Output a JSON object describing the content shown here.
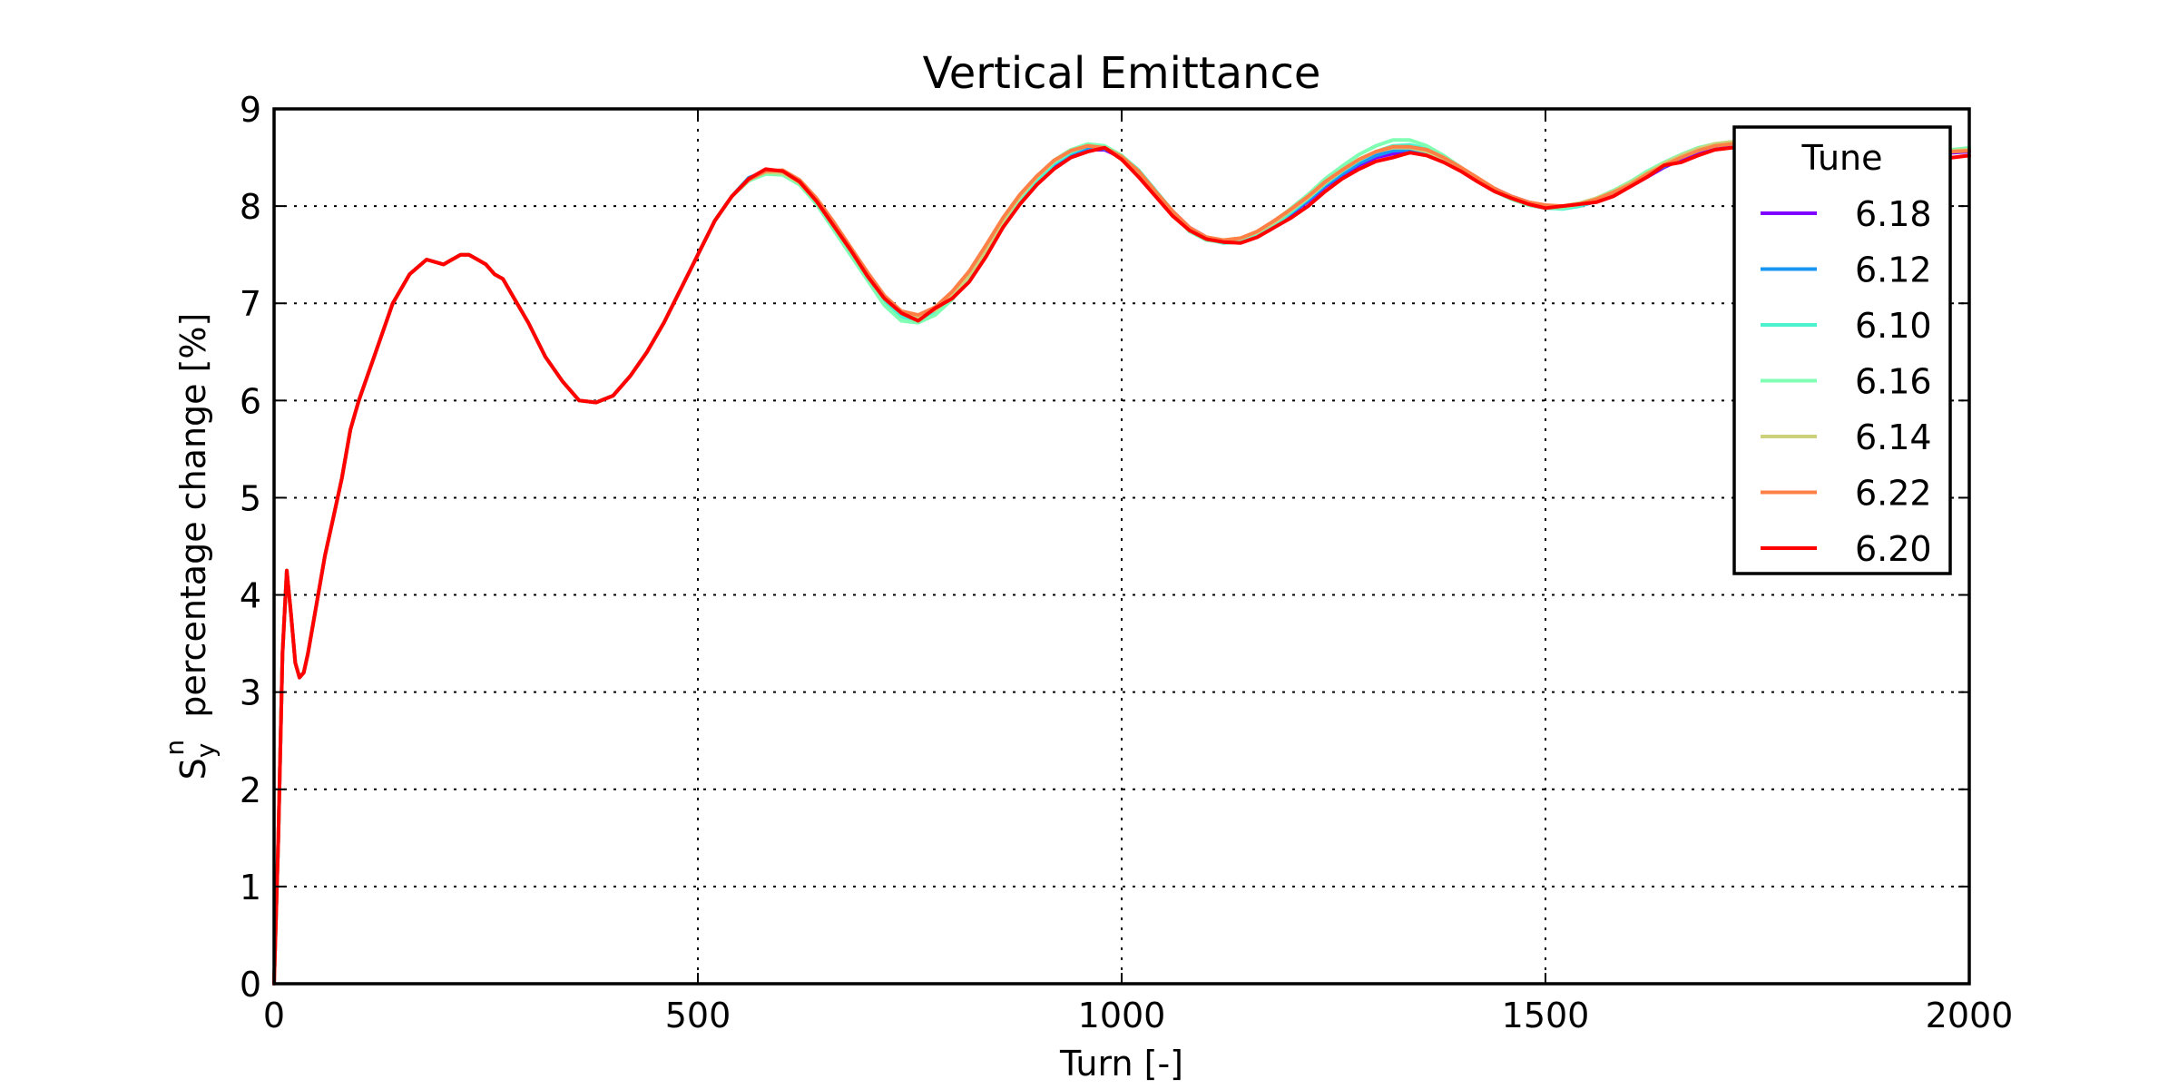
{
  "chart_data": {
    "type": "line",
    "title": "Vertical Emittance",
    "xlabel": "Turn [-]",
    "ylabel": {
      "main": "S",
      "superscript": "n",
      "subscript": "y",
      "rest": "  percentage change [%]"
    },
    "xlim": [
      0,
      2000
    ],
    "ylim": [
      0,
      9
    ],
    "xticks": [
      0,
      500,
      1000,
      1500,
      2000
    ],
    "yticks": [
      0,
      1,
      2,
      3,
      4,
      5,
      6,
      7,
      8,
      9
    ],
    "xtick_labels": [
      "0",
      "500",
      "1000",
      "1500",
      "2000"
    ],
    "ytick_labels": [
      "0",
      "1",
      "2",
      "3",
      "4",
      "5",
      "6",
      "7",
      "8",
      "9"
    ],
    "grid": true,
    "legend": {
      "title": "Tune",
      "position": "top-right"
    },
    "x": [
      0,
      5,
      10,
      15,
      20,
      25,
      30,
      35,
      40,
      50,
      60,
      70,
      80,
      90,
      100,
      120,
      140,
      160,
      180,
      200,
      210,
      220,
      230,
      240,
      250,
      260,
      270,
      280,
      300,
      320,
      340,
      360,
      380,
      400,
      420,
      440,
      460,
      480,
      500,
      520,
      540,
      560,
      580,
      600,
      620,
      640,
      660,
      680,
      700,
      720,
      740,
      760,
      780,
      800,
      820,
      840,
      860,
      880,
      900,
      920,
      940,
      960,
      980,
      1000,
      1020,
      1040,
      1060,
      1080,
      1100,
      1120,
      1140,
      1160,
      1180,
      1200,
      1220,
      1240,
      1260,
      1280,
      1300,
      1320,
      1340,
      1360,
      1380,
      1400,
      1420,
      1440,
      1460,
      1480,
      1500,
      1520,
      1540,
      1560,
      1580,
      1600,
      1620,
      1640,
      1660,
      1680,
      1700,
      1720,
      1740,
      1760,
      1780,
      1800,
      1820,
      1840,
      1860,
      1880,
      1900,
      1920,
      1940,
      1960,
      1980,
      2000
    ],
    "series": [
      {
        "name": "6.18",
        "color": "#8000ff",
        "values": [
          0,
          1.5,
          3.4,
          4.25,
          3.8,
          3.3,
          3.15,
          3.2,
          3.4,
          3.9,
          4.4,
          4.8,
          5.2,
          5.7,
          6.0,
          6.5,
          7.0,
          7.3,
          7.45,
          7.4,
          7.45,
          7.5,
          7.5,
          7.45,
          7.4,
          7.3,
          7.25,
          7.1,
          6.8,
          6.45,
          6.2,
          6.0,
          5.98,
          6.05,
          6.25,
          6.5,
          6.8,
          7.15,
          7.5,
          7.85,
          8.1,
          8.28,
          8.35,
          8.35,
          8.25,
          8.05,
          7.8,
          7.55,
          7.3,
          7.05,
          6.9,
          6.85,
          6.92,
          7.05,
          7.25,
          7.5,
          7.8,
          8.05,
          8.25,
          8.42,
          8.52,
          8.58,
          8.58,
          8.5,
          8.35,
          8.15,
          7.95,
          7.78,
          7.68,
          7.64,
          7.65,
          7.7,
          7.8,
          7.92,
          8.05,
          8.2,
          8.32,
          8.42,
          8.5,
          8.54,
          8.55,
          8.53,
          8.47,
          8.38,
          8.28,
          8.18,
          8.1,
          8.04,
          8.0,
          7.99,
          8.01,
          8.05,
          8.12,
          8.2,
          8.3,
          8.4,
          8.48,
          8.55,
          8.6,
          8.62,
          8.62,
          8.6,
          8.57,
          8.55,
          8.54,
          8.55,
          8.57,
          8.6,
          8.62,
          8.62,
          8.6,
          8.57,
          8.55,
          8.56
        ]
      },
      {
        "name": "6.12",
        "color": "#1996f3",
        "values": [
          0,
          1.5,
          3.4,
          4.25,
          3.8,
          3.3,
          3.15,
          3.2,
          3.4,
          3.9,
          4.4,
          4.8,
          5.2,
          5.7,
          6.0,
          6.5,
          7.0,
          7.3,
          7.45,
          7.4,
          7.45,
          7.5,
          7.5,
          7.45,
          7.4,
          7.3,
          7.25,
          7.1,
          6.8,
          6.45,
          6.2,
          6.0,
          5.98,
          6.05,
          6.25,
          6.5,
          6.8,
          7.15,
          7.5,
          7.85,
          8.1,
          8.29,
          8.36,
          8.34,
          8.24,
          8.06,
          7.8,
          7.54,
          7.28,
          7.04,
          6.88,
          6.84,
          6.9,
          7.06,
          7.27,
          7.52,
          7.82,
          8.07,
          8.27,
          8.43,
          8.54,
          8.6,
          8.59,
          8.51,
          8.36,
          8.15,
          7.94,
          7.77,
          7.67,
          7.63,
          7.64,
          7.7,
          7.81,
          7.93,
          8.06,
          8.21,
          8.33,
          8.44,
          8.52,
          8.57,
          8.58,
          8.55,
          8.48,
          8.38,
          8.27,
          8.17,
          8.09,
          8.03,
          7.99,
          7.98,
          8.0,
          8.05,
          8.13,
          8.22,
          8.32,
          8.41,
          8.5,
          8.57,
          8.62,
          8.64,
          8.63,
          8.61,
          8.58,
          8.56,
          8.55,
          8.56,
          8.58,
          8.61,
          8.63,
          8.63,
          8.61,
          8.58,
          8.56,
          8.57
        ]
      },
      {
        "name": "6.10",
        "color": "#4cf2ce",
        "values": [
          0,
          1.5,
          3.4,
          4.25,
          3.8,
          3.3,
          3.15,
          3.2,
          3.4,
          3.9,
          4.4,
          4.8,
          5.2,
          5.7,
          6.0,
          6.5,
          7.0,
          7.3,
          7.45,
          7.4,
          7.45,
          7.5,
          7.5,
          7.45,
          7.4,
          7.3,
          7.25,
          7.1,
          6.8,
          6.45,
          6.2,
          6.0,
          5.98,
          6.05,
          6.25,
          6.5,
          6.8,
          7.15,
          7.5,
          7.85,
          8.1,
          8.27,
          8.34,
          8.33,
          8.23,
          8.04,
          7.79,
          7.53,
          7.27,
          7.02,
          6.86,
          6.82,
          6.89,
          7.04,
          7.26,
          7.51,
          7.81,
          8.06,
          8.26,
          8.44,
          8.55,
          8.62,
          8.61,
          8.52,
          8.37,
          8.16,
          7.95,
          7.76,
          7.66,
          7.62,
          7.63,
          7.69,
          7.8,
          7.94,
          8.08,
          8.23,
          8.36,
          8.47,
          8.56,
          8.62,
          8.63,
          8.59,
          8.5,
          8.39,
          8.27,
          8.16,
          8.08,
          8.02,
          7.98,
          7.97,
          8.0,
          8.06,
          8.14,
          8.23,
          8.34,
          8.43,
          8.52,
          8.59,
          8.64,
          8.66,
          8.65,
          8.62,
          8.59,
          8.57,
          8.56,
          8.57,
          8.6,
          8.63,
          8.65,
          8.65,
          8.63,
          8.6,
          8.58,
          8.59
        ]
      },
      {
        "name": "6.16",
        "color": "#80ffb4",
        "values": [
          0,
          1.5,
          3.4,
          4.25,
          3.8,
          3.3,
          3.15,
          3.2,
          3.4,
          3.9,
          4.4,
          4.8,
          5.2,
          5.7,
          6.0,
          6.5,
          7.0,
          7.3,
          7.45,
          7.4,
          7.45,
          7.5,
          7.5,
          7.45,
          7.4,
          7.3,
          7.25,
          7.1,
          6.8,
          6.45,
          6.2,
          6.0,
          5.98,
          6.05,
          6.25,
          6.5,
          6.8,
          7.15,
          7.5,
          7.85,
          8.1,
          8.26,
          8.33,
          8.32,
          8.22,
          8.02,
          7.76,
          7.5,
          7.24,
          6.98,
          6.82,
          6.8,
          6.88,
          7.04,
          7.27,
          7.53,
          7.84,
          8.09,
          8.3,
          8.47,
          8.58,
          8.64,
          8.62,
          8.52,
          8.36,
          8.15,
          7.93,
          7.74,
          7.65,
          7.63,
          7.66,
          7.73,
          7.84,
          7.98,
          8.12,
          8.28,
          8.41,
          8.53,
          8.62,
          8.68,
          8.68,
          8.62,
          8.52,
          8.4,
          8.27,
          8.15,
          8.07,
          8.01,
          7.98,
          7.98,
          8.02,
          8.08,
          8.16,
          8.25,
          8.36,
          8.45,
          8.53,
          8.6,
          8.64,
          8.66,
          8.64,
          8.61,
          8.58,
          8.56,
          8.56,
          8.58,
          8.61,
          8.64,
          8.66,
          8.66,
          8.63,
          8.6,
          8.58,
          8.6
        ]
      },
      {
        "name": "6.14",
        "color": "#cdd17a",
        "values": [
          0,
          1.5,
          3.4,
          4.25,
          3.8,
          3.3,
          3.15,
          3.2,
          3.4,
          3.9,
          4.4,
          4.8,
          5.2,
          5.7,
          6.0,
          6.5,
          7.0,
          7.3,
          7.45,
          7.4,
          7.45,
          7.5,
          7.5,
          7.45,
          7.4,
          7.3,
          7.25,
          7.1,
          6.8,
          6.45,
          6.2,
          6.0,
          5.98,
          6.05,
          6.25,
          6.5,
          6.8,
          7.15,
          7.5,
          7.85,
          8.1,
          8.28,
          8.35,
          8.34,
          8.24,
          8.05,
          7.8,
          7.55,
          7.3,
          7.06,
          6.9,
          6.86,
          6.93,
          7.08,
          7.29,
          7.55,
          7.85,
          8.1,
          8.3,
          8.46,
          8.57,
          8.62,
          8.6,
          8.5,
          8.35,
          8.14,
          7.94,
          7.77,
          7.68,
          7.65,
          7.67,
          7.73,
          7.83,
          7.96,
          8.09,
          8.24,
          8.37,
          8.48,
          8.56,
          8.6,
          8.6,
          8.56,
          8.49,
          8.39,
          8.28,
          8.17,
          8.09,
          8.03,
          8.0,
          8.0,
          8.03,
          8.08,
          8.15,
          8.24,
          8.34,
          8.44,
          8.52,
          8.59,
          8.64,
          8.66,
          8.64,
          8.61,
          8.58,
          8.56,
          8.56,
          8.58,
          8.61,
          8.63,
          8.65,
          8.64,
          8.62,
          8.59,
          8.57,
          8.58
        ]
      },
      {
        "name": "6.22",
        "color": "#ff8047",
        "values": [
          0,
          1.5,
          3.4,
          4.25,
          3.8,
          3.3,
          3.15,
          3.2,
          3.4,
          3.9,
          4.4,
          4.8,
          5.2,
          5.7,
          6.0,
          6.5,
          7.0,
          7.3,
          7.45,
          7.4,
          7.45,
          7.5,
          7.5,
          7.45,
          7.4,
          7.3,
          7.25,
          7.1,
          6.8,
          6.45,
          6.2,
          6.0,
          5.98,
          6.05,
          6.25,
          6.5,
          6.8,
          7.15,
          7.5,
          7.85,
          8.1,
          8.27,
          8.36,
          8.37,
          8.27,
          8.08,
          7.84,
          7.58,
          7.32,
          7.08,
          6.92,
          6.88,
          6.96,
          7.12,
          7.33,
          7.6,
          7.88,
          8.12,
          8.31,
          8.47,
          8.57,
          8.62,
          8.6,
          8.51,
          8.36,
          8.15,
          7.95,
          7.78,
          7.68,
          7.65,
          7.67,
          7.74,
          7.85,
          7.97,
          8.1,
          8.25,
          8.37,
          8.48,
          8.56,
          8.61,
          8.61,
          8.58,
          8.5,
          8.4,
          8.29,
          8.18,
          8.1,
          8.04,
          8.01,
          8.0,
          8.02,
          8.07,
          8.14,
          8.22,
          8.33,
          8.42,
          8.5,
          8.57,
          8.62,
          8.64,
          8.63,
          8.6,
          8.58,
          8.56,
          8.56,
          8.58,
          8.6,
          8.62,
          8.63,
          8.62,
          8.6,
          8.57,
          8.56,
          8.57
        ]
      },
      {
        "name": "6.20",
        "color": "#ff0000",
        "values": [
          0,
          1.5,
          3.4,
          4.25,
          3.8,
          3.3,
          3.15,
          3.2,
          3.4,
          3.9,
          4.4,
          4.8,
          5.2,
          5.7,
          6.0,
          6.5,
          7.0,
          7.3,
          7.45,
          7.4,
          7.45,
          7.5,
          7.5,
          7.45,
          7.4,
          7.3,
          7.25,
          7.1,
          6.8,
          6.45,
          6.2,
          6.0,
          5.98,
          6.05,
          6.25,
          6.5,
          6.8,
          7.15,
          7.5,
          7.85,
          8.1,
          8.28,
          8.38,
          8.36,
          8.25,
          8.05,
          7.8,
          7.55,
          7.28,
          7.05,
          6.9,
          6.82,
          6.95,
          7.05,
          7.22,
          7.48,
          7.78,
          8.02,
          8.22,
          8.38,
          8.5,
          8.56,
          8.6,
          8.48,
          8.3,
          8.1,
          7.9,
          7.75,
          7.66,
          7.63,
          7.62,
          7.68,
          7.78,
          7.88,
          8.0,
          8.15,
          8.28,
          8.38,
          8.46,
          8.5,
          8.55,
          8.52,
          8.45,
          8.36,
          8.25,
          8.15,
          8.08,
          8.02,
          7.98,
          8.0,
          8.02,
          8.04,
          8.1,
          8.2,
          8.3,
          8.42,
          8.45,
          8.52,
          8.58,
          8.6,
          8.6,
          8.58,
          8.55,
          8.52,
          8.5,
          8.52,
          8.55,
          8.58,
          8.6,
          8.6,
          8.57,
          8.53,
          8.5,
          8.52
        ]
      }
    ]
  }
}
